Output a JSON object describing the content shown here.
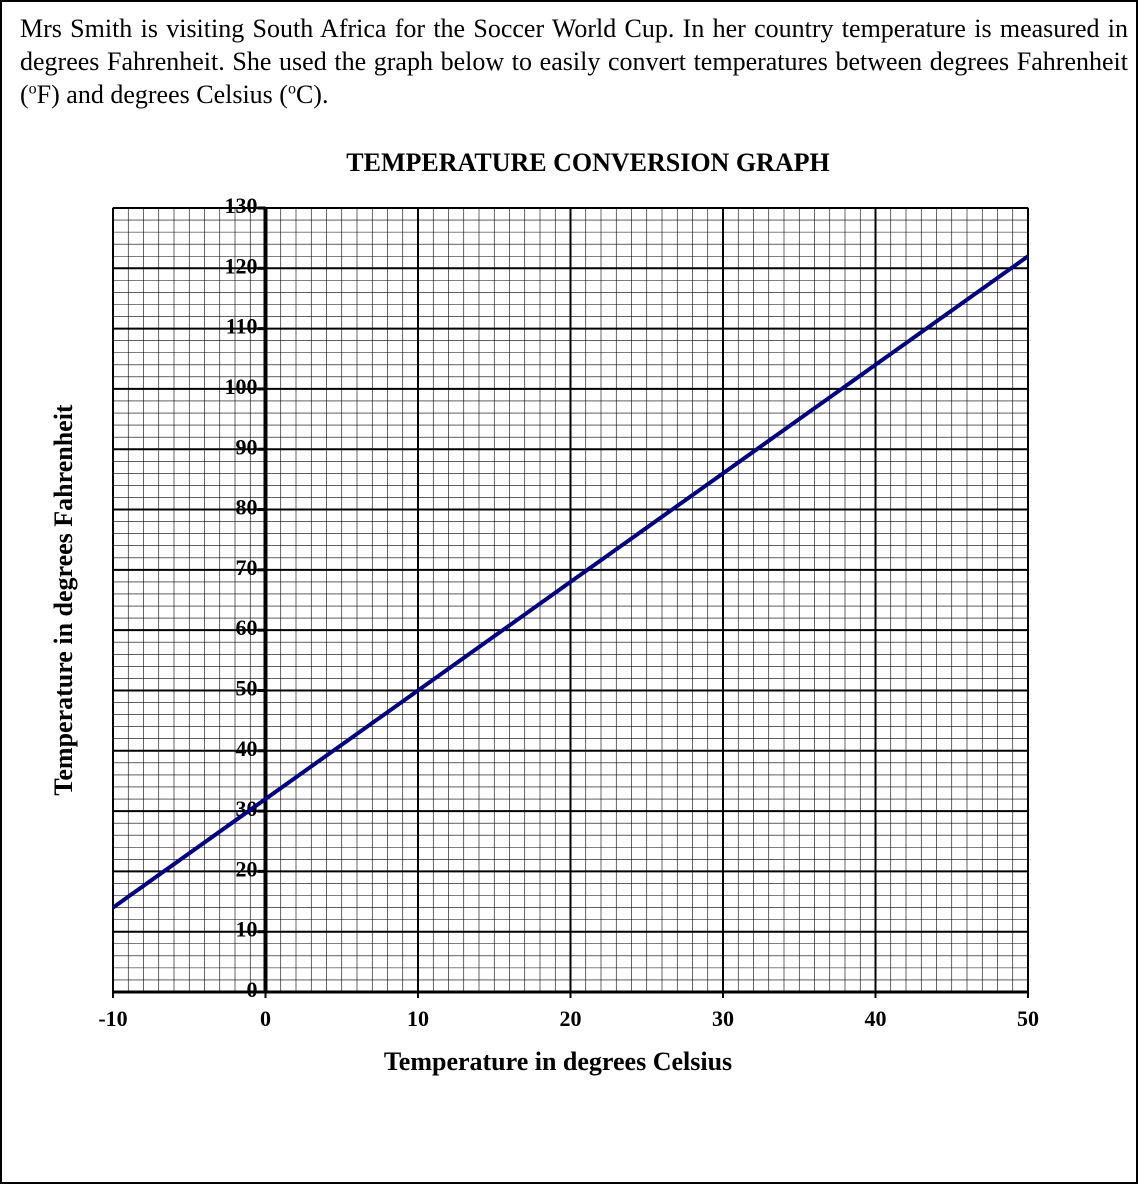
{
  "intro": [
    "Mrs Smith is visiting South Africa for the Soccer World Cup.  In her country temperature is measured in degrees Fahrenheit. She used the graph below to easily convert temperatures between degrees Fahrenheit (",
    "o",
    "F) and degrees Celsius (",
    "o",
    "C)."
  ],
  "chart_data": {
    "type": "line",
    "title": "TEMPERATURE CONVERSION GRAPH",
    "x_label": "Temperature in degrees Celsius",
    "y_label": "Temperature in degrees Fahrenheit",
    "x": [
      -10,
      0,
      10,
      20,
      30,
      40,
      50
    ],
    "series": [
      {
        "name": "Fahrenheit",
        "color": "#000080",
        "values": [
          14,
          32,
          50,
          68,
          86,
          104,
          122
        ]
      }
    ],
    "xlim": [
      -10,
      50
    ],
    "xticks": [
      -10,
      0,
      10,
      20,
      30,
      40,
      50
    ],
    "ylim": [
      0,
      130
    ],
    "yticks": [
      0,
      10,
      20,
      30,
      40,
      50,
      60,
      70,
      80,
      90,
      100,
      110,
      120,
      130
    ],
    "grid": true
  }
}
